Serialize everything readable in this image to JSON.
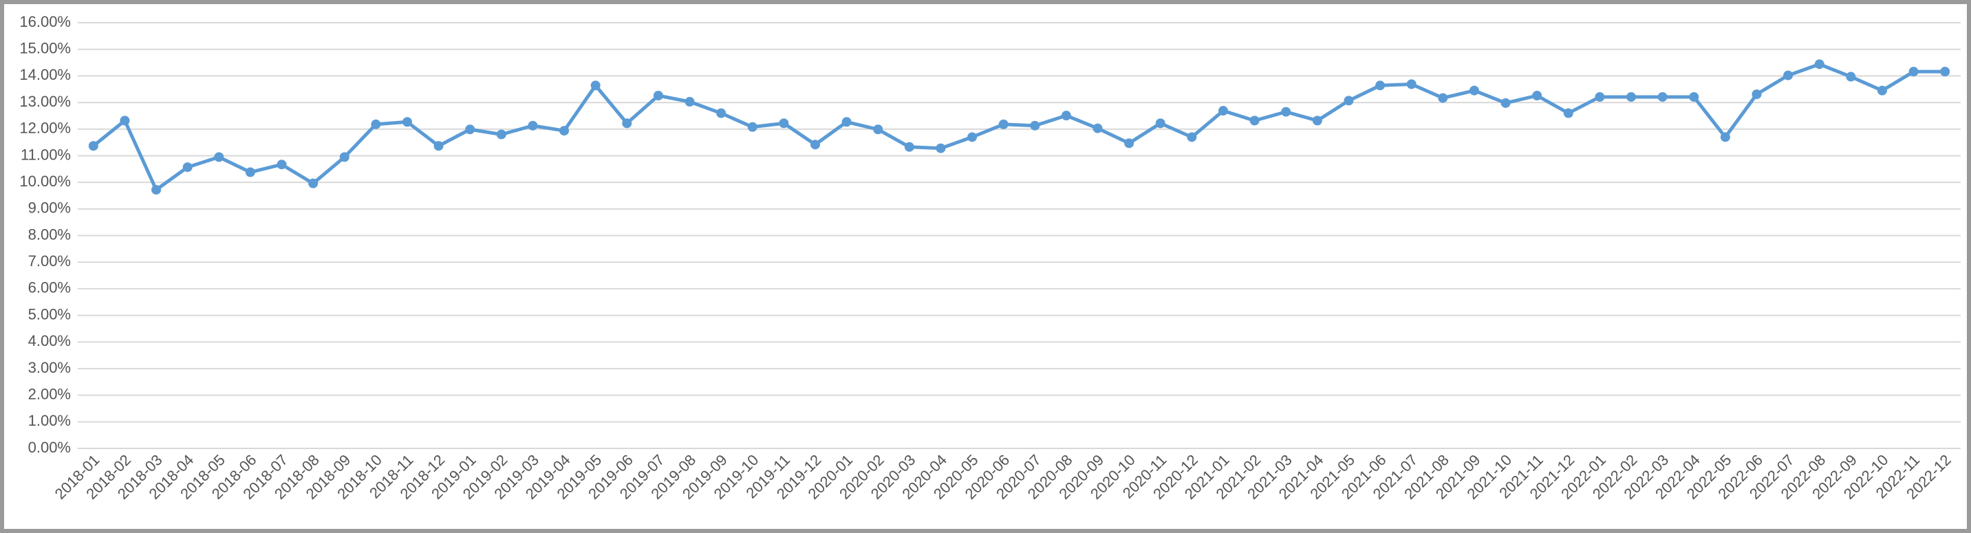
{
  "chart_data": {
    "type": "line",
    "color": "#5b9bd5",
    "grid": true,
    "categories": [
      "2018-01",
      "2018-02",
      "2018-03",
      "2018-04",
      "2018-05",
      "2018-06",
      "2018-07",
      "2018-08",
      "2018-09",
      "2018-10",
      "2018-11",
      "2018-12",
      "2019-01",
      "2019-02",
      "2019-03",
      "2019-04",
      "2019-05",
      "2019-06",
      "2019-07",
      "2019-08",
      "2019-09",
      "2019-10",
      "2019-11",
      "2019-12",
      "2020-01",
      "2020-02",
      "2020-03",
      "2020-04",
      "2020-05",
      "2020-06",
      "2020-07",
      "2020-08",
      "2020-09",
      "2020-10",
      "2020-11",
      "2020-12",
      "2021-01",
      "2021-02",
      "2021-03",
      "2021-04",
      "2021-05",
      "2021-06",
      "2021-07",
      "2021-08",
      "2021-09",
      "2021-10",
      "2021-11",
      "2021-12",
      "2022-01",
      "2022-02",
      "2022-03",
      "2022-04",
      "2022-05",
      "2022-06",
      "2022-07",
      "2022-08",
      "2022-09",
      "2022-10",
      "2022-11",
      "2022-12"
    ],
    "values": [
      11.37,
      12.32,
      9.72,
      10.57,
      10.95,
      10.38,
      10.67,
      9.96,
      10.95,
      12.18,
      12.27,
      11.37,
      11.99,
      11.8,
      12.13,
      11.94,
      13.64,
      12.22,
      13.26,
      13.03,
      12.6,
      12.08,
      12.22,
      11.42,
      12.27,
      11.99,
      11.33,
      11.28,
      11.7,
      12.18,
      12.13,
      12.51,
      12.03,
      11.47,
      12.22,
      11.7,
      12.69,
      12.32,
      12.65,
      12.32,
      13.07,
      13.64,
      13.69,
      13.17,
      13.45,
      12.98,
      13.26,
      12.6,
      13.21,
      13.21,
      13.21,
      13.21,
      11.7,
      13.31,
      14.02,
      14.44,
      13.97,
      13.45,
      14.16,
      14.16
    ],
    "ylim": [
      0,
      16
    ],
    "yticks": [
      {
        "value": 0,
        "label": "0.00%"
      },
      {
        "value": 1,
        "label": "1.00%"
      },
      {
        "value": 2,
        "label": "2.00%"
      },
      {
        "value": 3,
        "label": "3.00%"
      },
      {
        "value": 4,
        "label": "4.00%"
      },
      {
        "value": 5,
        "label": "5.00%"
      },
      {
        "value": 6,
        "label": "6.00%"
      },
      {
        "value": 7,
        "label": "7.00%"
      },
      {
        "value": 8,
        "label": "8.00%"
      },
      {
        "value": 9,
        "label": "9.00%"
      },
      {
        "value": 10,
        "label": "10.00%"
      },
      {
        "value": 11,
        "label": "11.00%"
      },
      {
        "value": 12,
        "label": "12.00%"
      },
      {
        "value": 13,
        "label": "13.00%"
      },
      {
        "value": 14,
        "label": "14.00%"
      },
      {
        "value": 15,
        "label": "15.00%"
      },
      {
        "value": 16,
        "label": "16.00%"
      }
    ]
  }
}
